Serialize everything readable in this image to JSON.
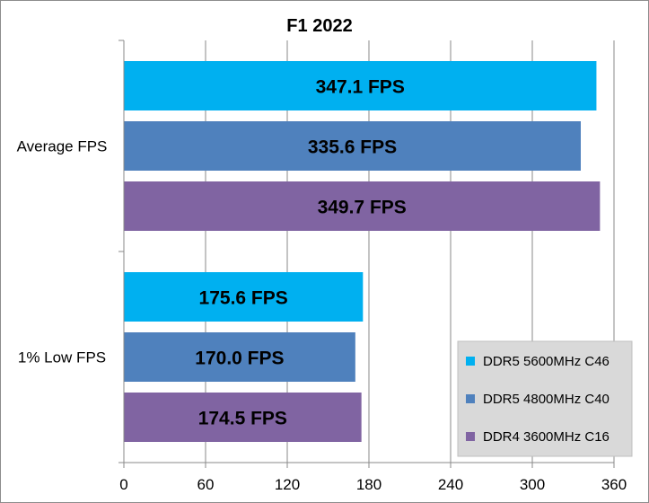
{
  "chart_data": {
    "type": "bar",
    "orientation": "horizontal",
    "title": "F1 2022",
    "xlabel": "",
    "ylabel": "",
    "xlim": [
      0,
      360
    ],
    "x_ticks": [
      0,
      60,
      120,
      180,
      240,
      300,
      360
    ],
    "grid": true,
    "legend_position": "bottom-right",
    "categories": [
      "Average FPS",
      "1% Low FPS"
    ],
    "series": [
      {
        "name": "DDR5 5600MHz C46",
        "color": "#00b0f0",
        "values": [
          347.1,
          175.6
        ],
        "labels": [
          "347.1 FPS",
          "175.6 FPS"
        ]
      },
      {
        "name": "DDR5 4800MHz C40",
        "color": "#4f81bd",
        "values": [
          335.6,
          170.0
        ],
        "labels": [
          "335.6 FPS",
          "170.0 FPS"
        ]
      },
      {
        "name": "DDR4 3600MHz C16",
        "color": "#8064a2",
        "values": [
          349.7,
          174.5
        ],
        "labels": [
          "349.7 FPS",
          "174.5 FPS"
        ]
      }
    ]
  }
}
